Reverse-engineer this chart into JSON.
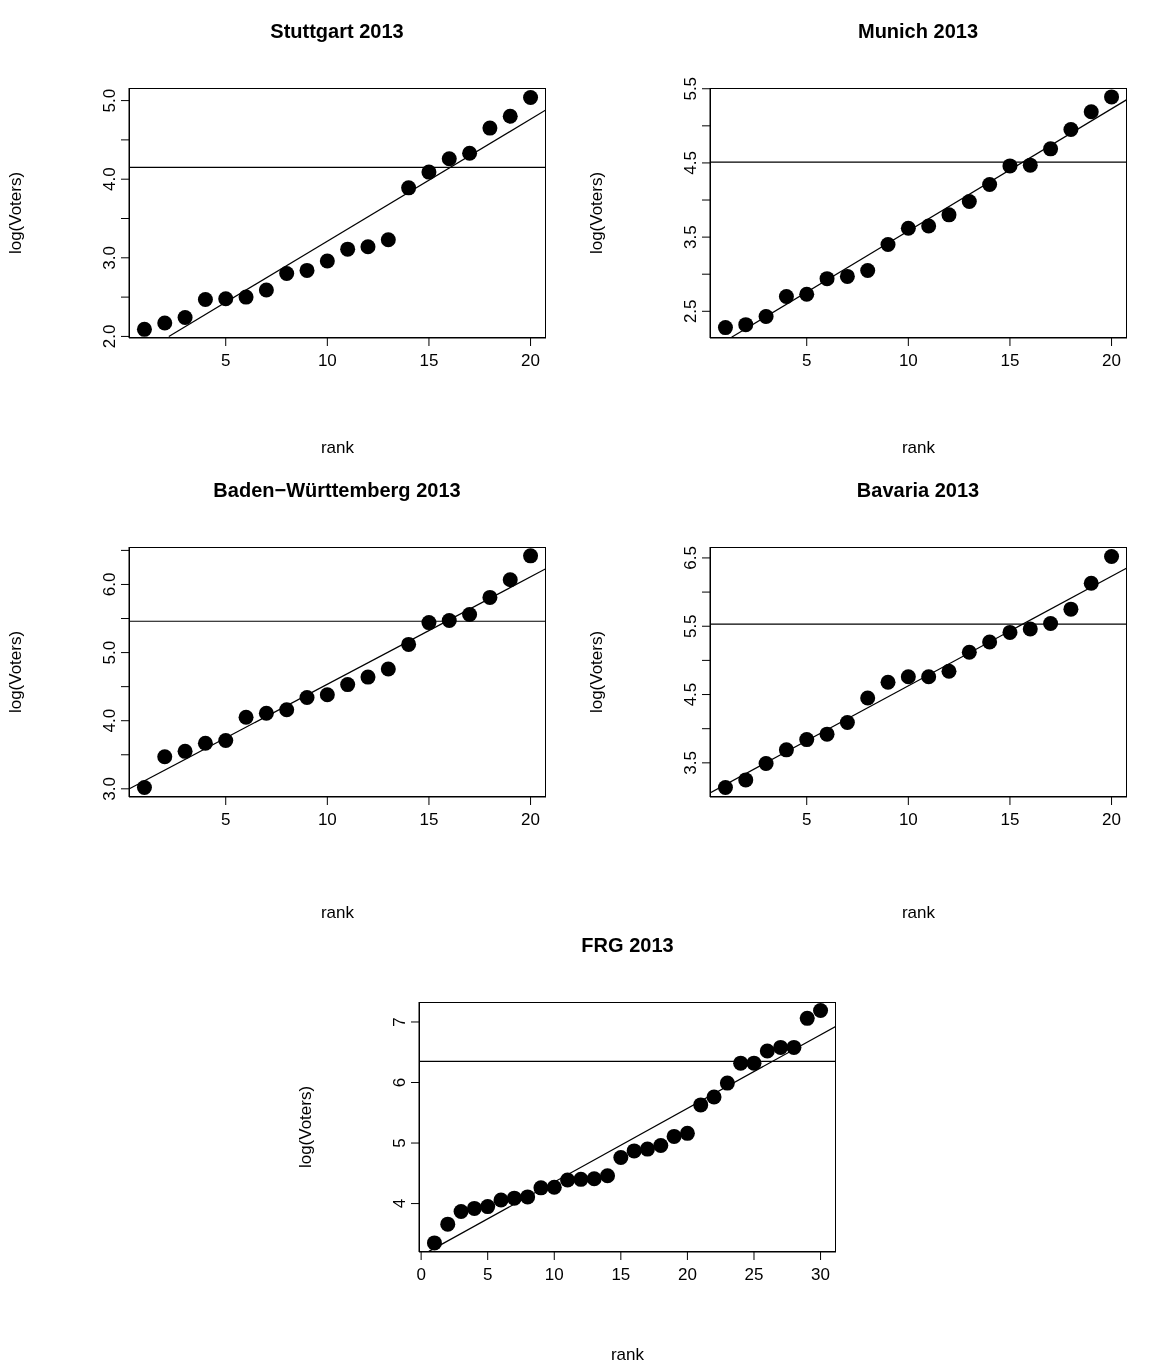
{
  "chart_data": [
    {
      "type": "scatter",
      "title": "Stuttgart 2013",
      "xlabel": "rank",
      "ylabel": "log(Voters)",
      "xlim": [
        0.24,
        20.76
      ],
      "ylim": [
        1.98,
        5.16
      ],
      "xticks": [
        5,
        10,
        15,
        20
      ],
      "yticks": [
        {
          "value": 2,
          "label": "2.0"
        },
        {
          "value": 2.5,
          "label": null
        },
        {
          "value": 3,
          "label": "3.0"
        },
        {
          "value": 3.5,
          "label": null
        },
        {
          "value": 4,
          "label": "4.0"
        },
        {
          "value": 4.5,
          "label": null
        },
        {
          "value": 5,
          "label": "5.0"
        }
      ],
      "ref_lines": [
        {
          "axis": "y",
          "value": 4.15
        }
      ],
      "series": [
        {
          "type": "scatter",
          "marker": "circle",
          "color": "#000000",
          "x": [
            1,
            2,
            3,
            4,
            5,
            6,
            7,
            8,
            9,
            10,
            11,
            12,
            13,
            14,
            15,
            16,
            17,
            18,
            19,
            20
          ],
          "values": [
            2.09,
            2.17,
            2.24,
            2.47,
            2.48,
            2.5,
            2.59,
            2.8,
            2.84,
            2.96,
            3.11,
            3.14,
            3.23,
            3.89,
            4.09,
            4.26,
            4.33,
            4.65,
            4.8,
            5.04
          ]
        },
        {
          "type": "line",
          "color": "#000000",
          "x": [
            2.2,
            20.75
          ],
          "values": [
            2.0,
            4.88
          ]
        }
      ]
    },
    {
      "type": "scatter",
      "title": "Munich 2013",
      "xlabel": "rank",
      "ylabel": "log(Voters)",
      "xlim": [
        0.24,
        20.76
      ],
      "ylim": [
        2.14,
        5.51
      ],
      "xticks": [
        5,
        10,
        15,
        20
      ],
      "yticks": [
        2.5,
        {
          "value": 3,
          "label": null
        },
        3.5,
        {
          "value": 4,
          "label": null
        },
        4.5,
        {
          "value": 5,
          "label": null
        },
        5.5
      ],
      "ref_lines": [
        {
          "axis": "y",
          "value": 4.51
        }
      ],
      "series": [
        {
          "type": "scatter",
          "marker": "circle",
          "color": "#000000",
          "x": [
            1,
            2,
            3,
            4,
            5,
            6,
            7,
            8,
            9,
            10,
            11,
            12,
            13,
            14,
            15,
            16,
            17,
            18,
            19,
            20
          ],
          "values": [
            2.28,
            2.32,
            2.43,
            2.7,
            2.73,
            2.94,
            2.97,
            3.05,
            3.4,
            3.62,
            3.65,
            3.8,
            3.98,
            4.21,
            4.46,
            4.47,
            4.69,
            4.95,
            5.19,
            5.39
          ]
        },
        {
          "type": "line",
          "color": "#000000",
          "x": [
            1.3,
            20.73
          ],
          "values": [
            2.15,
            5.35
          ]
        }
      ]
    },
    {
      "type": "scatter",
      "title": "Baden−Württemberg 2013",
      "xlabel": "rank",
      "ylabel": "log(Voters)",
      "xlim": [
        0.24,
        20.76
      ],
      "ylim": [
        2.88,
        6.55
      ],
      "xticks": [
        5,
        10,
        15,
        20
      ],
      "yticks": [
        {
          "value": 3,
          "label": "3.0"
        },
        {
          "value": 3.5,
          "label": null
        },
        {
          "value": 4,
          "label": "4.0"
        },
        {
          "value": 4.5,
          "label": null
        },
        {
          "value": 5,
          "label": "5.0"
        },
        {
          "value": 5.5,
          "label": null
        },
        {
          "value": 6,
          "label": "6.0"
        },
        {
          "value": 6.5,
          "label": null
        }
      ],
      "ref_lines": [
        {
          "axis": "y",
          "value": 5.46
        }
      ],
      "series": [
        {
          "type": "scatter",
          "marker": "circle",
          "color": "#000000",
          "x": [
            1,
            2,
            3,
            4,
            5,
            6,
            7,
            8,
            9,
            10,
            11,
            12,
            13,
            14,
            15,
            16,
            17,
            18,
            19,
            20
          ],
          "values": [
            3.02,
            3.47,
            3.55,
            3.67,
            3.71,
            4.05,
            4.11,
            4.16,
            4.34,
            4.38,
            4.53,
            4.64,
            4.76,
            5.12,
            5.44,
            5.47,
            5.56,
            5.81,
            6.07,
            6.42
          ]
        },
        {
          "type": "line",
          "color": "#000000",
          "x": [
            0.26,
            20.75
          ],
          "values": [
            3.0,
            6.23
          ]
        }
      ]
    },
    {
      "type": "scatter",
      "title": "Bavaria 2013",
      "xlabel": "rank",
      "ylabel": "log(Voters)",
      "xlim": [
        0.24,
        20.76
      ],
      "ylim": [
        3.0,
        6.66
      ],
      "xticks": [
        5,
        10,
        15,
        20
      ],
      "yticks": [
        3.5,
        {
          "value": 4,
          "label": null
        },
        4.5,
        {
          "value": 5,
          "label": null
        },
        5.5,
        {
          "value": 6,
          "label": null
        },
        6.5
      ],
      "ref_lines": [
        {
          "axis": "y",
          "value": 5.53
        }
      ],
      "series": [
        {
          "type": "scatter",
          "marker": "circle",
          "color": "#000000",
          "x": [
            1,
            2,
            3,
            4,
            5,
            6,
            7,
            8,
            9,
            10,
            11,
            12,
            13,
            14,
            15,
            16,
            17,
            18,
            19,
            20
          ],
          "values": [
            3.14,
            3.25,
            3.49,
            3.69,
            3.84,
            3.92,
            4.09,
            4.45,
            4.68,
            4.76,
            4.76,
            4.84,
            5.12,
            5.27,
            5.41,
            5.46,
            5.54,
            5.75,
            6.13,
            6.52
          ]
        },
        {
          "type": "line",
          "color": "#000000",
          "x": [
            0.24,
            20.73
          ],
          "values": [
            3.06,
            6.35
          ]
        }
      ]
    },
    {
      "type": "scatter",
      "title": "FRG 2013",
      "xlabel": "rank",
      "ylabel": "log(Voters)",
      "xlim": [
        -0.16,
        31.16
      ],
      "ylim": [
        3.2,
        7.33
      ],
      "xticks": [
        0,
        5,
        10,
        15,
        20,
        25,
        30
      ],
      "yticks": [
        4,
        5,
        6,
        7
      ],
      "ref_lines": [
        {
          "axis": "y",
          "value": 6.35
        }
      ],
      "series": [
        {
          "type": "scatter",
          "marker": "circle",
          "color": "#000000",
          "x": [
            1,
            2,
            3,
            4,
            5,
            6,
            7,
            8,
            9,
            10,
            11,
            12,
            13,
            14,
            15,
            16,
            17,
            18,
            19,
            20,
            21,
            22,
            23,
            24,
            25,
            26,
            27,
            28,
            29,
            30
          ],
          "values": [
            3.35,
            3.66,
            3.87,
            3.92,
            3.95,
            4.06,
            4.09,
            4.11,
            4.26,
            4.27,
            4.39,
            4.4,
            4.41,
            4.46,
            4.76,
            4.87,
            4.9,
            4.96,
            5.11,
            5.16,
            5.63,
            5.76,
            5.99,
            6.32,
            6.32,
            6.52,
            6.58,
            6.58,
            7.06,
            7.19
          ]
        },
        {
          "type": "line",
          "color": "#000000",
          "x": [
            0.58,
            31.16
          ],
          "values": [
            3.21,
            6.93
          ]
        }
      ]
    }
  ]
}
